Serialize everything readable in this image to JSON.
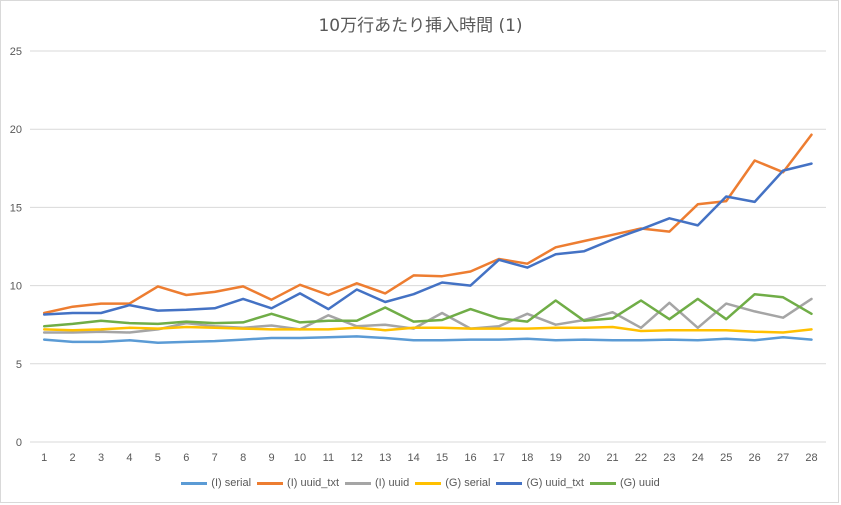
{
  "chart_data": {
    "type": "line",
    "title": "10万行あたり挿入時間 (1)",
    "xlabel": "",
    "ylabel": "",
    "ylim": [
      0,
      25
    ],
    "yticks": [
      0,
      5,
      10,
      15,
      20,
      25
    ],
    "grid": true,
    "legend_position": "bottom",
    "categories": [
      1,
      2,
      3,
      4,
      5,
      6,
      7,
      8,
      9,
      10,
      11,
      12,
      13,
      14,
      15,
      16,
      17,
      18,
      19,
      20,
      21,
      22,
      23,
      24,
      25,
      26,
      27,
      28
    ],
    "series": [
      {
        "name": "(I) serial",
        "color": "#5B9BD5",
        "values": [
          6.55,
          6.4,
          6.4,
          6.5,
          6.35,
          6.4,
          6.45,
          6.55,
          6.65,
          6.65,
          6.7,
          6.75,
          6.65,
          6.5,
          6.5,
          6.55,
          6.55,
          6.6,
          6.5,
          6.55,
          6.5,
          6.5,
          6.55,
          6.5,
          6.6,
          6.5,
          6.7,
          6.55
        ]
      },
      {
        "name": "(I) uuid_txt",
        "color": "#ED7D31",
        "values": [
          8.25,
          8.65,
          8.85,
          8.85,
          9.95,
          9.4,
          9.6,
          9.95,
          9.1,
          10.05,
          9.4,
          10.15,
          9.5,
          10.65,
          10.6,
          10.9,
          11.7,
          11.4,
          12.45,
          12.85,
          13.25,
          13.65,
          13.45,
          15.2,
          15.4,
          18.0,
          17.25,
          19.65
        ]
      },
      {
        "name": "(I) uuid",
        "color": "#A5A5A5",
        "values": [
          7.0,
          7.0,
          7.05,
          7.0,
          7.2,
          7.6,
          7.4,
          7.3,
          7.45,
          7.2,
          8.1,
          7.4,
          7.5,
          7.25,
          8.25,
          7.25,
          7.4,
          8.2,
          7.5,
          7.8,
          8.3,
          7.3,
          8.9,
          7.3,
          8.85,
          8.35,
          7.95,
          9.15
        ]
      },
      {
        "name": "(G) serial",
        "color": "#FFC000",
        "values": [
          7.2,
          7.15,
          7.2,
          7.3,
          7.25,
          7.35,
          7.3,
          7.25,
          7.2,
          7.2,
          7.2,
          7.3,
          7.15,
          7.3,
          7.3,
          7.25,
          7.25,
          7.25,
          7.3,
          7.3,
          7.35,
          7.1,
          7.15,
          7.15,
          7.15,
          7.05,
          7.0,
          7.2
        ]
      },
      {
        "name": "(G) uuid_txt",
        "color": "#4472C4",
        "values": [
          8.15,
          8.25,
          8.25,
          8.75,
          8.4,
          8.45,
          8.55,
          9.15,
          8.55,
          9.5,
          8.5,
          9.75,
          8.95,
          9.45,
          10.2,
          10.0,
          11.65,
          11.15,
          12.0,
          12.2,
          12.95,
          13.6,
          14.3,
          13.85,
          15.7,
          15.35,
          17.35,
          17.8
        ]
      },
      {
        "name": "(G) uuid",
        "color": "#70AD47",
        "values": [
          7.4,
          7.55,
          7.75,
          7.6,
          7.55,
          7.7,
          7.6,
          7.65,
          8.2,
          7.65,
          7.75,
          7.75,
          8.6,
          7.7,
          7.8,
          8.5,
          7.9,
          7.7,
          9.05,
          7.75,
          7.9,
          9.05,
          7.85,
          9.15,
          7.85,
          9.45,
          9.25,
          8.2
        ]
      }
    ]
  }
}
